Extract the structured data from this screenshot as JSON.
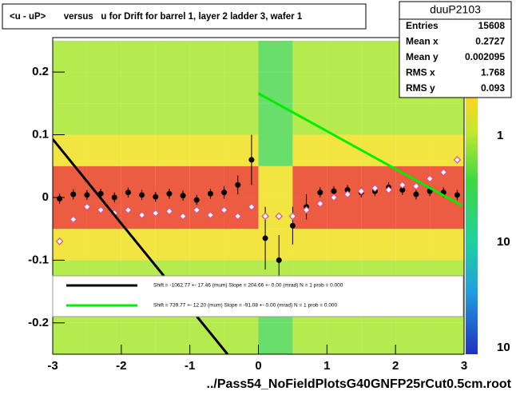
{
  "chart_data": {
    "type": "heatmap",
    "title": "<u - uP>       versus   u for Drift for barrel 1, layer 2 ladder 3, wafer 1",
    "x_label": "../Pass54_NoFieldPlotsG40GNFP25rCut0.5cm.root",
    "xlim": [
      -3,
      3
    ],
    "ylim": [
      -0.25,
      0.255
    ],
    "xticks": [
      -3,
      -2,
      -1,
      0,
      1,
      2,
      3
    ],
    "yticks": [
      -0.2,
      -0.1,
      0,
      0.1,
      0.2
    ],
    "palette_labels": [
      "1",
      "10",
      "10"
    ],
    "stats_box": {
      "name": "duuP2103",
      "rows": [
        {
          "label": "Entries",
          "value": 15608
        },
        {
          "label": "Mean x",
          "value": 0.2727
        },
        {
          "label": "Mean y",
          "value": 0.002095
        },
        {
          "label": "RMS x",
          "value": 1.768
        },
        {
          "label": "RMS y",
          "value": 0.093
        }
      ]
    },
    "heatmap": {
      "xbins": [
        -3,
        -2.5,
        -2,
        -1.5,
        -1,
        -0.5,
        0,
        0.5,
        1,
        1.5,
        2,
        2.5,
        3
      ],
      "ybins": [
        -0.25,
        -0.2,
        -0.15,
        -0.1,
        -0.05,
        0,
        0.05,
        0.1,
        0.15,
        0.2,
        0.25
      ],
      "counts": [
        [
          2,
          2,
          2,
          2,
          2,
          2,
          1,
          2,
          2,
          2,
          2,
          2
        ],
        [
          2,
          3,
          3,
          3,
          3,
          2,
          1,
          3,
          3,
          3,
          3,
          3
        ],
        [
          3,
          3,
          3,
          3,
          3,
          3,
          2,
          3,
          3,
          3,
          3,
          3
        ],
        [
          5,
          4,
          4,
          4,
          4,
          5,
          4,
          4,
          4,
          4,
          4,
          5
        ],
        [
          20,
          25,
          30,
          30,
          30,
          25,
          8,
          25,
          30,
          30,
          30,
          25
        ],
        [
          25,
          30,
          30,
          30,
          30,
          20,
          6,
          30,
          30,
          30,
          30,
          25
        ],
        [
          4,
          4,
          4,
          4,
          4,
          4,
          1,
          4,
          4,
          4,
          4,
          4
        ],
        [
          3,
          3,
          3,
          3,
          3,
          3,
          1,
          3,
          3,
          3,
          3,
          3
        ],
        [
          2,
          3,
          3,
          3,
          3,
          3,
          1,
          3,
          3,
          3,
          3,
          3
        ],
        [
          2,
          2,
          2,
          2,
          2,
          2,
          1,
          2,
          2,
          2,
          2,
          2
        ]
      ]
    },
    "series": [
      {
        "type": "errorbar",
        "color": "#000000",
        "x": [
          -2.9,
          -2.7,
          -2.5,
          -2.3,
          -2.1,
          -1.9,
          -1.7,
          -1.5,
          -1.3,
          -1.1,
          -0.9,
          -0.7,
          -0.5,
          -0.3,
          -0.1,
          0.1,
          0.3,
          0.5,
          0.7,
          0.9,
          1.1,
          1.3,
          1.5,
          1.7,
          1.9,
          2.1,
          2.3,
          2.5,
          2.7,
          2.9
        ],
        "values": [
          -0.002,
          0.005,
          0.004,
          0.006,
          0.0,
          0.008,
          0.004,
          0.001,
          0.006,
          0.003,
          -0.004,
          0.006,
          0.008,
          0.02,
          0.06,
          -0.065,
          -0.1,
          -0.045,
          -0.015,
          0.008,
          0.01,
          0.012,
          0.008,
          0.01,
          0.016,
          0.012,
          0.005,
          0.01,
          0.008,
          0.004
        ],
        "errors": [
          0.008,
          0.008,
          0.008,
          0.008,
          0.008,
          0.008,
          0.008,
          0.008,
          0.008,
          0.008,
          0.008,
          0.008,
          0.01,
          0.015,
          0.04,
          0.05,
          0.04,
          0.03,
          0.02,
          0.008,
          0.008,
          0.008,
          0.008,
          0.008,
          0.008,
          0.008,
          0.008,
          0.008,
          0.008,
          0.008
        ]
      },
      {
        "type": "scatter",
        "color": "#e0508c",
        "x": [
          -2.9,
          -2.7,
          -2.5,
          -2.3,
          -2.1,
          -1.9,
          -1.7,
          -1.5,
          -1.3,
          -1.1,
          -0.9,
          -0.7,
          -0.5,
          -0.3,
          -0.1,
          0.1,
          0.3,
          0.5,
          0.7,
          0.9,
          1.1,
          1.3,
          1.5,
          1.7,
          1.9,
          2.1,
          2.3,
          2.5,
          2.7,
          2.9
        ],
        "values": [
          -0.07,
          -0.035,
          -0.015,
          -0.02,
          -0.025,
          -0.02,
          -0.028,
          -0.025,
          -0.022,
          -0.03,
          -0.02,
          -0.028,
          -0.02,
          -0.03,
          -0.015,
          -0.03,
          -0.03,
          -0.03,
          -0.02,
          -0.01,
          0.0,
          0.005,
          0.01,
          0.015,
          0.012,
          0.02,
          0.018,
          0.03,
          0.04,
          0.06
        ]
      },
      {
        "type": "line",
        "color": "#000000",
        "x": [
          -3,
          -0.45
        ],
        "values": [
          0.093,
          -0.25
        ],
        "label": "Shift =  -1062.77 +- 17.46 (mum) Slope =   204.66 +- 0.00 (mrad)  N = 1 prob = 0.000"
      },
      {
        "type": "line",
        "color": "#00ee00",
        "x": [
          0,
          2.97
        ],
        "values": [
          0.166,
          -0.013
        ],
        "label": "Shift =   739.77 +- 12.20 (mum) Slope =   -91.08 +- 0.00 (mrad)  N = 1 prob = 0.000"
      }
    ]
  }
}
